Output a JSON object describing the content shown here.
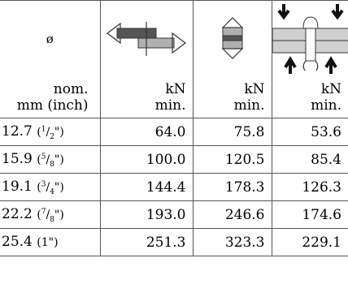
{
  "header": {
    "diameter_symbol": "ø",
    "unit_label_line1": "nom.",
    "unit_label_line2": "mm (inch)",
    "columns": [
      {
        "icon": "shear-icon",
        "unit": "kN",
        "qualifier": "min."
      },
      {
        "icon": "tensile-icon",
        "unit": "kN",
        "qualifier": "min."
      },
      {
        "icon": "rivet-pull-icon",
        "unit": "kN",
        "qualifier": "min."
      }
    ]
  },
  "rows": [
    {
      "mm": "12.7",
      "num": "1",
      "den": "2",
      "close": "\")",
      "v1": "64.0",
      "v2": "75.8",
      "v3": "53.6"
    },
    {
      "mm": "15.9",
      "num": "5",
      "den": "8",
      "close": "\")",
      "v1": "100.0",
      "v2": "120.5",
      "v3": "85.4"
    },
    {
      "mm": "19.1",
      "num": "3",
      "den": "4",
      "close": "\")",
      "v1": "144.4",
      "v2": "178.3",
      "v3": "126.3"
    },
    {
      "mm": "22.2",
      "num": "7",
      "den": "8",
      "close": "\")",
      "v1": "193.0",
      "v2": "246.6",
      "v3": "174.6"
    },
    {
      "mm": "25.4",
      "inch": "(1\")",
      "v1": "251.3",
      "v2": "323.3",
      "v3": "229.1"
    }
  ],
  "colors": {
    "rule": "#555555",
    "dark_fill": "#555555",
    "light_fill": "#b0b0b0"
  }
}
